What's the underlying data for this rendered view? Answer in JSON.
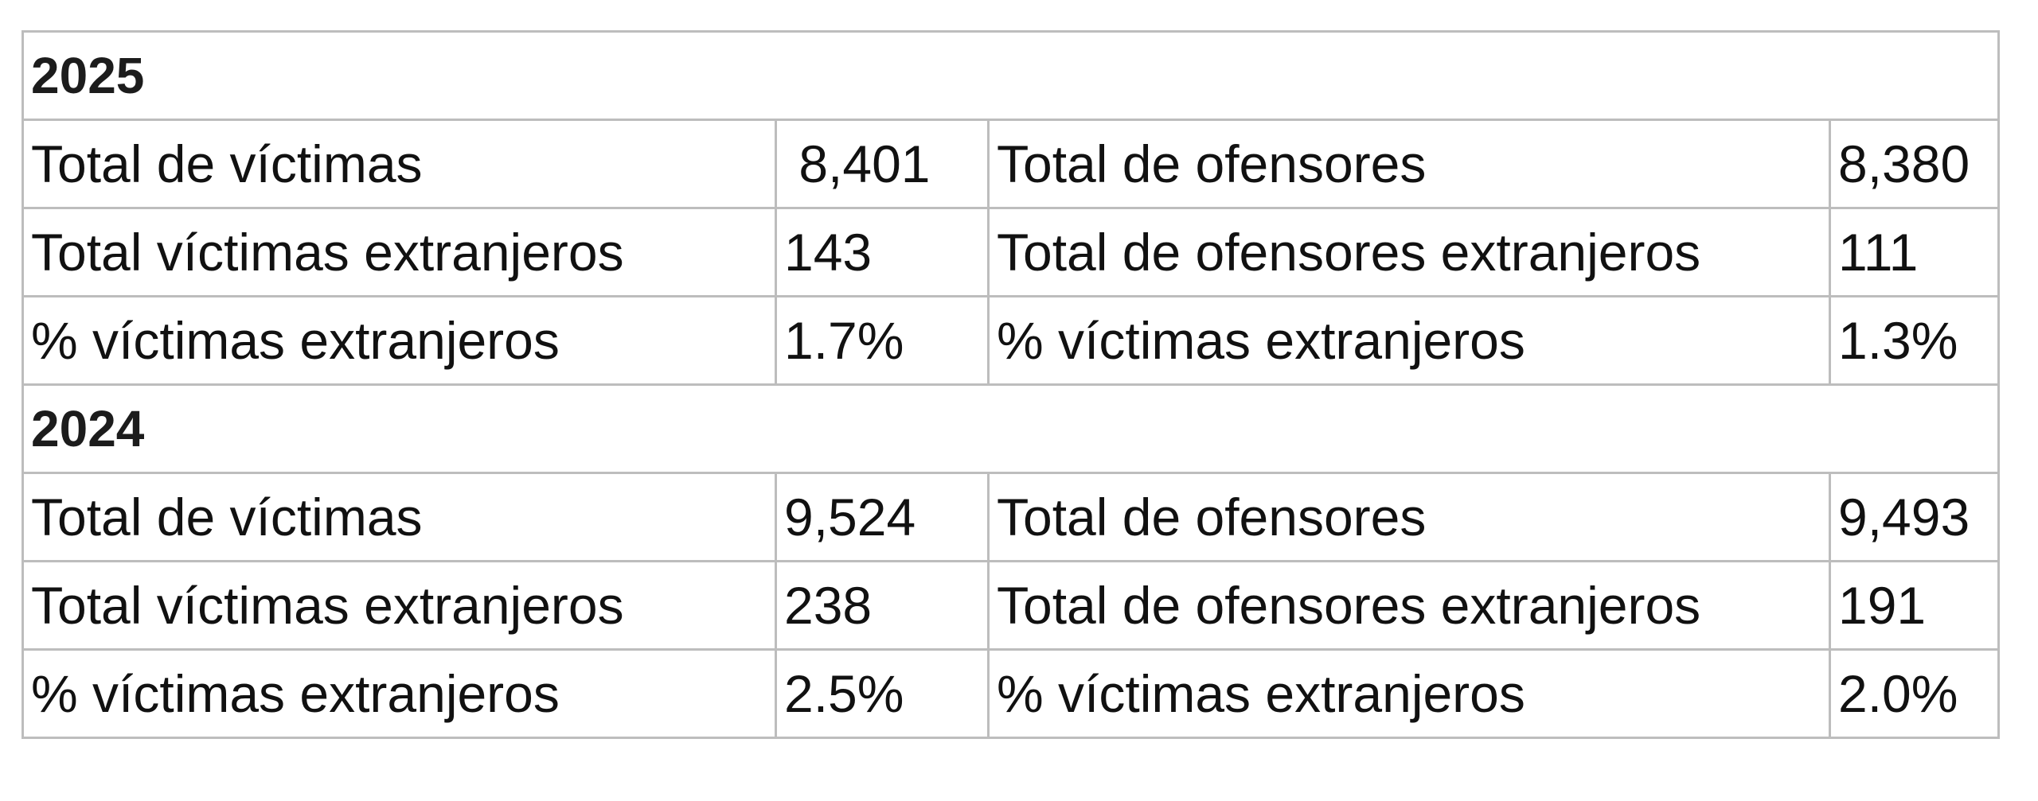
{
  "sections": [
    {
      "year": "2025",
      "rows": [
        {
          "left_label": "Total de víctimas",
          "left_value": " 8,401",
          "right_label": "Total de ofensores",
          "right_value": "8,380"
        },
        {
          "left_label": "Total víctimas extranjeros",
          "left_value": "143",
          "right_label": "Total de ofensores extranjeros",
          "right_value": "111"
        },
        {
          "left_label": "% víctimas extranjeros",
          "left_value": "1.7%",
          "right_label": "% víctimas extranjeros",
          "right_value": "1.3%"
        }
      ]
    },
    {
      "year": "2024",
      "rows": [
        {
          "left_label": "Total de víctimas",
          "left_value": "9,524",
          "right_label": "Total de ofensores",
          "right_value": "9,493"
        },
        {
          "left_label": "Total víctimas extranjeros",
          "left_value": "238",
          "right_label": "Total de ofensores extranjeros",
          "right_value": "191"
        },
        {
          "left_label": "% víctimas extranjeros",
          "left_value": "2.5%",
          "right_label": "% víctimas extranjeros",
          "right_value": "2.0%"
        }
      ]
    }
  ],
  "colors": {
    "border": "#bdbdbd",
    "text": "#111111",
    "background": "#ffffff"
  }
}
